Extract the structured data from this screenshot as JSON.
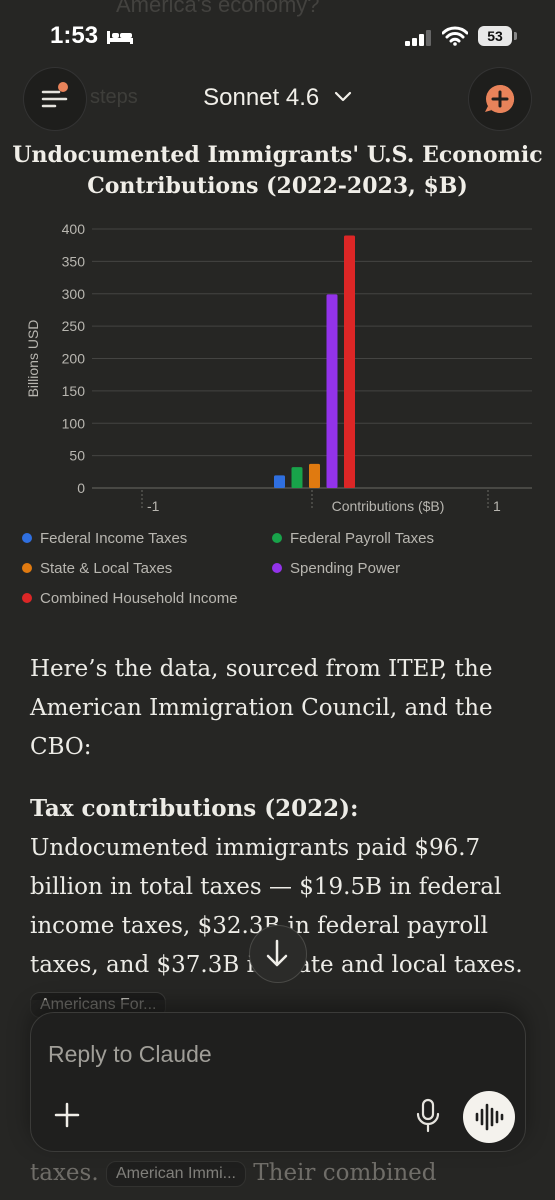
{
  "status_bar": {
    "time": "1:53",
    "battery": "53"
  },
  "background": {
    "ghost_top": "America's economy?",
    "ghost_steps": "steps"
  },
  "header": {
    "model": "Sonnet 4.6"
  },
  "chart_data": {
    "type": "bar",
    "title": "Undocumented Immigrants' U.S. Economic Contributions (2022-2023, $B)",
    "title_line1": "Undocumented Immigrants' U.S. Economic",
    "title_line2": "Contributions (2022-2023, $B)",
    "xlabel": "Contributions ($B)",
    "ylabel": "Billions USD",
    "ylim": [
      0,
      400
    ],
    "yticks": [
      0,
      50,
      100,
      150,
      200,
      250,
      300,
      350,
      400
    ],
    "xticks": [
      "-1",
      "1"
    ],
    "series": [
      {
        "name": "Federal Income Taxes",
        "value": 19.5,
        "color": "#2f6fe0"
      },
      {
        "name": "Federal Payroll Taxes",
        "value": 32.3,
        "color": "#18a34a"
      },
      {
        "name": "State & Local Taxes",
        "value": 37.3,
        "color": "#e07a10"
      },
      {
        "name": "Spending Power",
        "value": 299,
        "color": "#9333ea"
      },
      {
        "name": "Combined Household Income",
        "value": 390,
        "color": "#dc2626"
      }
    ]
  },
  "content": {
    "para1": "Here’s the data, sourced from ITEP, the American Immigration Council, and the CBO:",
    "para2_bold": "Tax contributions (2022):",
    "para2_text": " Undocumented immigrants paid $96.7 billion in total taxes — $19.5B in federal income taxes, $32.3B in federal payroll taxes, and $37.3B in state and local taxes. ",
    "cite1": "Americans For...",
    "faded_line_start": "taxes.",
    "cite2": "American Immi...",
    "faded_line_end": "Their combined"
  },
  "composer": {
    "placeholder": "Reply to Claude"
  }
}
